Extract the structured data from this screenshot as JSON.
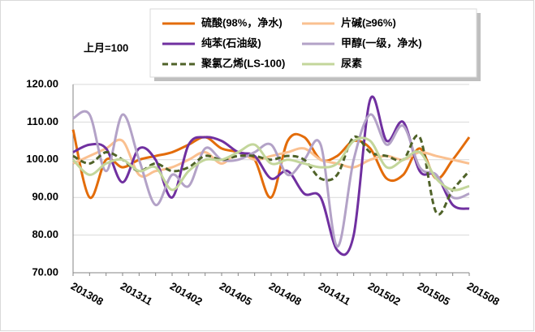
{
  "chart_data": {
    "type": "line",
    "annotation": "上月=100",
    "categories": [
      "201308",
      null,
      null,
      "201311",
      null,
      null,
      "201402",
      null,
      null,
      "201405",
      null,
      null,
      "201408",
      null,
      null,
      "201411",
      null,
      null,
      "201502",
      null,
      null,
      "201505",
      null,
      null,
      "201508"
    ],
    "series": [
      {
        "name": "硫酸(98%，净水)",
        "color": "#e36c0a",
        "dash": false,
        "values": [
          108,
          90,
          100,
          98,
          100,
          101,
          102,
          104,
          106,
          103,
          102,
          100,
          90,
          105,
          106,
          100,
          101,
          105,
          103,
          95,
          96,
          103,
          95,
          100,
          106
        ]
      },
      {
        "name": "片碱(≥96%)",
        "color": "#fac090",
        "dash": false,
        "values": [
          99,
          101,
          103,
          105,
          96,
          97,
          98,
          100,
          102,
          99,
          102,
          100,
          101,
          102,
          103,
          100,
          99,
          98,
          100,
          101,
          100,
          102,
          101,
          100,
          99
        ]
      },
      {
        "name": "纯苯(石油级)",
        "color": "#7030a0",
        "dash": false,
        "values": [
          102,
          104,
          103,
          94,
          103,
          100,
          90,
          104,
          106,
          105,
          102,
          101,
          95,
          97,
          91,
          90,
          76,
          80,
          116,
          105,
          110,
          97,
          96,
          88,
          87
        ]
      },
      {
        "name": "甲醇(一级，净水)",
        "color": "#b3a2c7",
        "dash": false,
        "values": [
          111,
          112,
          97,
          112,
          100,
          88,
          96,
          93,
          103,
          100,
          100,
          102,
          104,
          96,
          100,
          104,
          77,
          100,
          112,
          104,
          109,
          98,
          96,
          90,
          91
        ]
      },
      {
        "name": "聚氯乙烯(LS-100)",
        "color": "#4f6228",
        "dash": true,
        "values": [
          101,
          99,
          102,
          100,
          97,
          99,
          97,
          98,
          101,
          100,
          101,
          101,
          100,
          101,
          100,
          95,
          96,
          106,
          102,
          101,
          100,
          106,
          86,
          92,
          97
        ]
      },
      {
        "name": "尿素",
        "color": "#c3d69b",
        "dash": false,
        "values": [
          100,
          96,
          99,
          100,
          97,
          98,
          92,
          97,
          100,
          100,
          102,
          104,
          99,
          100,
          99,
          98,
          99,
          105,
          105,
          98,
          100,
          102,
          95,
          92,
          93
        ]
      }
    ],
    "ylim": [
      70,
      120
    ],
    "yticks": [
      {
        "value": 70,
        "label": "70.00"
      },
      {
        "value": 80,
        "label": "80.00"
      },
      {
        "value": 90,
        "label": "90.00"
      },
      {
        "value": 100,
        "label": "100.00"
      },
      {
        "value": 110,
        "label": "110.00"
      },
      {
        "value": 120,
        "label": "120.00"
      }
    ],
    "grid": true
  }
}
